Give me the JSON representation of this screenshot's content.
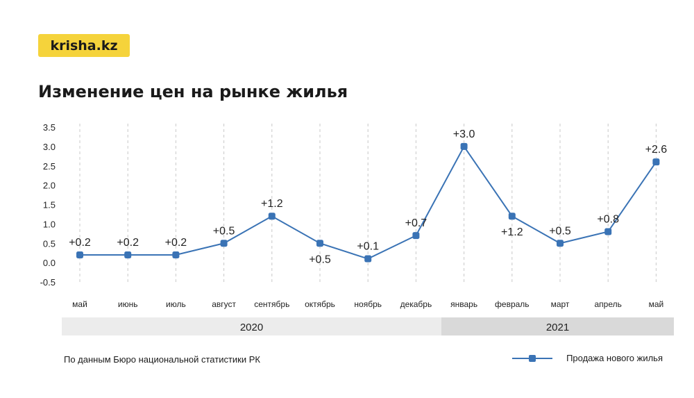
{
  "brand": {
    "logo_text": "krisha.kz"
  },
  "title": "Изменение цен на рынке жилья",
  "source_note": "По данным Бюро национальной статистики РК",
  "legend": {
    "label": "Продажа нового жилья"
  },
  "colors": {
    "line": "#3a73b5",
    "logo_bg": "#f5d33b",
    "year1_band": "#ececec",
    "year2_band": "#d9d9d9",
    "grid": "#c8c8c8"
  },
  "chart_data": {
    "type": "line",
    "categories": [
      "май",
      "июнь",
      "июль",
      "август",
      "сентябрь",
      "октябрь",
      "ноябрь",
      "декабрь",
      "январь",
      "февраль",
      "март",
      "апрель",
      "май"
    ],
    "series": [
      {
        "name": "Продажа нового жилья",
        "values": [
          0.2,
          0.2,
          0.2,
          0.5,
          1.2,
          0.5,
          0.1,
          0.7,
          3.0,
          1.2,
          0.5,
          0.8,
          2.6
        ],
        "labels": [
          "+0.2",
          "+0.2",
          "+0.2",
          "+0.5",
          "+1.2",
          "+0.5",
          "+0.1",
          "+0.7",
          "+3.0",
          "+1.2",
          "+0.5",
          "+0.8",
          "+2.6"
        ]
      }
    ],
    "yticks": [
      "3.5",
      "3.0",
      "2.5",
      "2.0",
      "1.5",
      "1.0",
      "0.5",
      "0.0",
      "-0.5"
    ],
    "ylim": [
      -0.5,
      3.5
    ],
    "years": [
      {
        "label": "2020",
        "from": 0,
        "to": 7
      },
      {
        "label": "2021",
        "from": 8,
        "to": 12
      }
    ],
    "grid": "vertical-dashed",
    "legend_position": "bottom-right"
  }
}
